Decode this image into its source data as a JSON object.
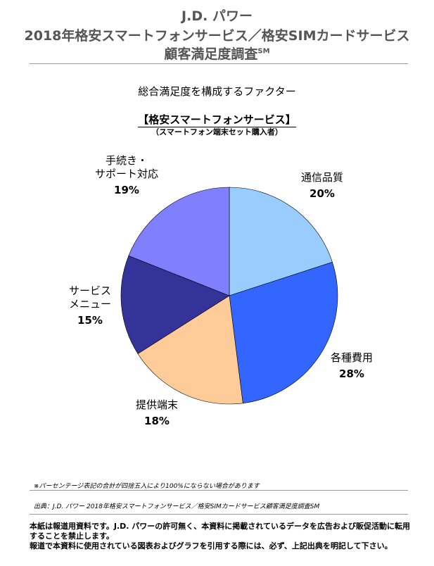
{
  "header": {
    "line1": "J.D. パワー",
    "line2": "2018年格安スマートフォンサービス／格安SIMカードサービス",
    "line3": "顧客満足度調査",
    "line3_sup": "SM"
  },
  "chart_heading": "総合満足度を構成するファクター",
  "segment_title": "【格安スマートフォンサービス】",
  "segment_subtitle": "（スマートフォン端末セット購入者）",
  "chart_data": {
    "type": "pie",
    "start_angle_deg": 0,
    "direction": "clockwise",
    "slices": [
      {
        "label": [
          "通信品質"
        ],
        "value": 20,
        "value_label": "20%",
        "color": "#99ccff"
      },
      {
        "label": [
          "各種費用"
        ],
        "value": 28,
        "value_label": "28%",
        "color": "#3366ff"
      },
      {
        "label": [
          "提供端末"
        ],
        "value": 18,
        "value_label": "18%",
        "color": "#ffcc99"
      },
      {
        "label": [
          "サービス",
          "メニュー"
        ],
        "value": 15,
        "value_label": "15%",
        "color": "#333399"
      },
      {
        "label": [
          "手続き・",
          "サポート対応"
        ],
        "value": 19,
        "value_label": "19%",
        "color": "#8080ff"
      }
    ]
  },
  "footer": {
    "note": "※パーセンテージ表記の合計が四捨五入により100%にならない場合があります",
    "source": "出典：J.D. パワー 2018年格安スマートフォンサービス／格安SIMカードサービス顧客満足度調査SM",
    "disclaimer_1": "本紙は報道用資料です。J.D. パワーの許可無く、本資料に掲載されているデータを広告および販促活動に転用することを禁止します。",
    "disclaimer_2": "報道で本資料に使用されている図表およびグラフを引用する際には、必ず、上記出典を明記して下さい。"
  }
}
